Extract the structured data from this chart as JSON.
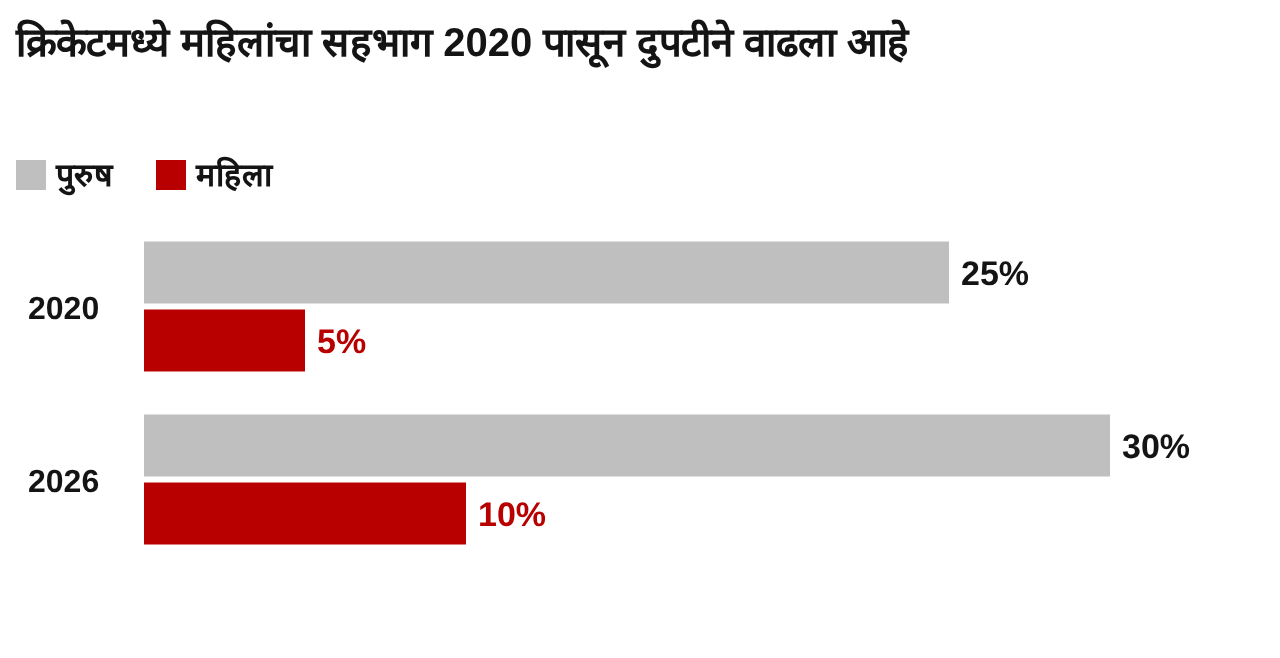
{
  "chart_data": {
    "type": "bar",
    "orientation": "horizontal",
    "title": "क्रिकेटमध्ये महिलांचा सहभाग 2020 पासून दुपटीने वाढला आहे",
    "categories": [
      "2020",
      "2026"
    ],
    "series": [
      {
        "name": "पुरुष",
        "color": "#bfbfbf",
        "values": [
          25,
          30
        ],
        "value_labels": [
          "25%",
          "30%"
        ]
      },
      {
        "name": "महिला",
        "color": "#b80000",
        "values": [
          5,
          10
        ],
        "value_labels": [
          "5%",
          "10%"
        ]
      }
    ],
    "tick_labels": "y",
    "legend": "top left"
  }
}
